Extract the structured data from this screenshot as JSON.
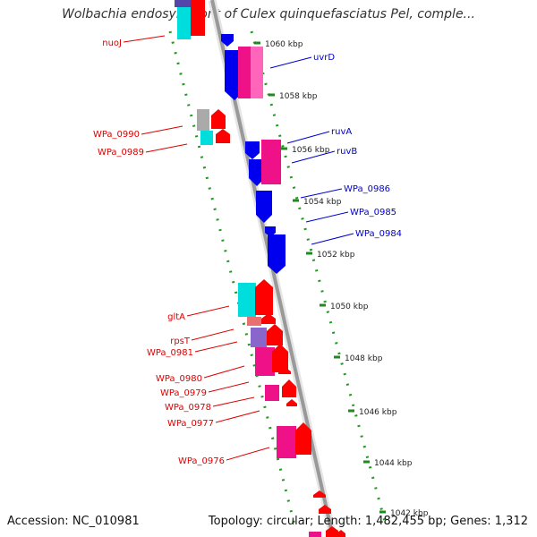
{
  "title": "Wolbachia endosymbiont of Culex quinquefasciatus Pel, comple...",
  "accession": "Accession: NC_010981",
  "summary": "Topology: circular; Length: 1,482,455 bp; Genes: 1,312",
  "colors": {
    "forward": "#ff0000",
    "reverse": "#0000ee",
    "magenta": "#ee1188",
    "cyan": "#00dddd",
    "gray": "#aaaaaa",
    "purple": "#8866cc",
    "salmon": "#e87070",
    "tick": "#228822",
    "backbone": "#999999"
  },
  "axis": {
    "unit": "kbp",
    "labels": [
      "1060 kbp",
      "1058 kbp",
      "1056 kbp",
      "1054 kbp",
      "1052 kbp",
      "1050 kbp",
      "1048 kbp",
      "1046 kbp",
      "1044 kbp",
      "1042 kbp"
    ],
    "values": [
      1060,
      1058,
      1056,
      1054,
      1052,
      1050,
      1048,
      1046,
      1044,
      1042
    ]
  },
  "genes_reverse": [
    {
      "name": "uvrD",
      "strand": "reverse"
    },
    {
      "name": "ruvA",
      "strand": "reverse"
    },
    {
      "name": "ruvB",
      "strand": "reverse"
    },
    {
      "name": "WPa_0986",
      "strand": "reverse"
    },
    {
      "name": "WPa_0985",
      "strand": "reverse"
    },
    {
      "name": "WPa_0984",
      "strand": "reverse"
    }
  ],
  "genes_forward": [
    {
      "name": "nuoJ",
      "strand": "forward"
    },
    {
      "name": "WPa_0990",
      "strand": "forward"
    },
    {
      "name": "WPa_0989",
      "strand": "forward"
    },
    {
      "name": "gltA",
      "strand": "forward"
    },
    {
      "name": "rpsT",
      "strand": "forward"
    },
    {
      "name": "WPa_0981",
      "strand": "forward"
    },
    {
      "name": "WPa_0980",
      "strand": "forward"
    },
    {
      "name": "WPa_0979",
      "strand": "forward"
    },
    {
      "name": "WPa_0978",
      "strand": "forward"
    },
    {
      "name": "WPa_0977",
      "strand": "forward"
    },
    {
      "name": "WPa_0976",
      "strand": "forward"
    }
  ]
}
